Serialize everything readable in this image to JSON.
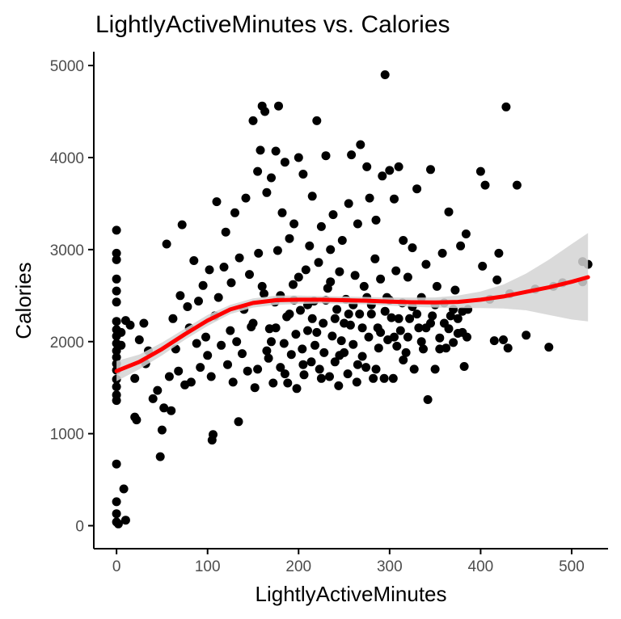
{
  "chart_data": {
    "type": "scatter",
    "title": "LightlyActiveMinutes vs. Calories",
    "xlabel": "LightlyActiveMinutes",
    "ylabel": "Calories",
    "xlim": [
      -25,
      540
    ],
    "ylim": [
      -250,
      5150
    ],
    "x_ticks": [
      0,
      100,
      200,
      300,
      400,
      500
    ],
    "y_ticks": [
      0,
      1000,
      2000,
      3000,
      4000,
      5000
    ],
    "x_tick_labels": [
      "0",
      "100",
      "200",
      "300",
      "400",
      "500"
    ],
    "y_tick_labels": [
      "0",
      "1000",
      "2000",
      "3000",
      "4000",
      "5000"
    ],
    "grid": false,
    "legend": "none",
    "point_color": "#000000",
    "smooth_color": "#ff0000",
    "ribbon_color": "#d3d3d3",
    "smooth_curve": {
      "x": [
        0,
        25,
        50,
        75,
        100,
        125,
        150,
        175,
        200,
        225,
        250,
        275,
        300,
        325,
        350,
        375,
        400,
        425,
        450,
        475,
        500,
        518
      ],
      "y": [
        1680,
        1780,
        1920,
        2080,
        2230,
        2350,
        2420,
        2450,
        2455,
        2455,
        2450,
        2445,
        2435,
        2428,
        2425,
        2432,
        2455,
        2490,
        2540,
        2590,
        2650,
        2700
      ],
      "upper": [
        1790,
        1860,
        1990,
        2140,
        2290,
        2400,
        2470,
        2500,
        2500,
        2495,
        2490,
        2485,
        2480,
        2478,
        2480,
        2500,
        2545,
        2620,
        2740,
        2890,
        3060,
        3180
      ],
      "lower": [
        1570,
        1700,
        1850,
        2020,
        2170,
        2300,
        2370,
        2400,
        2410,
        2415,
        2410,
        2405,
        2390,
        2378,
        2370,
        2364,
        2365,
        2360,
        2340,
        2290,
        2240,
        2220
      ]
    },
    "points": [
      [
        0,
        3210
      ],
      [
        0,
        2960
      ],
      [
        0,
        2890
      ],
      [
        0,
        2680
      ],
      [
        0,
        2550
      ],
      [
        0,
        2430
      ],
      [
        0,
        2220
      ],
      [
        0,
        2130
      ],
      [
        0,
        2060
      ],
      [
        0,
        1980
      ],
      [
        0,
        1900
      ],
      [
        0,
        1830
      ],
      [
        0,
        1760
      ],
      [
        0,
        1690
      ],
      [
        0,
        1590
      ],
      [
        0,
        1510
      ],
      [
        0,
        1420
      ],
      [
        0,
        1360
      ],
      [
        0,
        670
      ],
      [
        0,
        260
      ],
      [
        0,
        130
      ],
      [
        0,
        40
      ],
      [
        2,
        20
      ],
      [
        5,
        1960
      ],
      [
        8,
        400
      ],
      [
        10,
        60
      ],
      [
        5,
        2100
      ],
      [
        10,
        2230
      ],
      [
        15,
        2180
      ],
      [
        20,
        1600
      ],
      [
        20,
        1180
      ],
      [
        22,
        1150
      ],
      [
        25,
        2020
      ],
      [
        30,
        2200
      ],
      [
        32,
        1760
      ],
      [
        35,
        1900
      ],
      [
        40,
        1380
      ],
      [
        45,
        1470
      ],
      [
        48,
        750
      ],
      [
        50,
        1040
      ],
      [
        52,
        1280
      ],
      [
        55,
        3060
      ],
      [
        58,
        1620
      ],
      [
        60,
        1250
      ],
      [
        62,
        2250
      ],
      [
        65,
        1920
      ],
      [
        68,
        1680
      ],
      [
        70,
        2500
      ],
      [
        72,
        3270
      ],
      [
        75,
        1530
      ],
      [
        78,
        2380
      ],
      [
        80,
        2150
      ],
      [
        82,
        1560
      ],
      [
        85,
        2880
      ],
      [
        88,
        1980
      ],
      [
        90,
        2440
      ],
      [
        92,
        1720
      ],
      [
        95,
        2610
      ],
      [
        98,
        2050
      ],
      [
        100,
        1850
      ],
      [
        102,
        2780
      ],
      [
        104,
        1620
      ],
      [
        105,
        930
      ],
      [
        106,
        990
      ],
      [
        108,
        2280
      ],
      [
        110,
        3520
      ],
      [
        112,
        2480
      ],
      [
        115,
        1960
      ],
      [
        118,
        2810
      ],
      [
        120,
        3190
      ],
      [
        122,
        1750
      ],
      [
        125,
        2120
      ],
      [
        126,
        2640
      ],
      [
        128,
        1560
      ],
      [
        130,
        3400
      ],
      [
        132,
        2000
      ],
      [
        134,
        1130
      ],
      [
        135,
        2910
      ],
      [
        138,
        1870
      ],
      [
        140,
        2350
      ],
      [
        142,
        3560
      ],
      [
        144,
        1680
      ],
      [
        146,
        2730
      ],
      [
        148,
        2160
      ],
      [
        150,
        4400
      ],
      [
        152,
        1500
      ],
      [
        155,
        3850
      ],
      [
        156,
        2960
      ],
      [
        158,
        4080
      ],
      [
        160,
        4560
      ],
      [
        162,
        2520
      ],
      [
        163,
        4500
      ],
      [
        165,
        3620
      ],
      [
        167,
        1820
      ],
      [
        168,
        2140
      ],
      [
        170,
        3780
      ],
      [
        172,
        1550
      ],
      [
        174,
        2430
      ],
      [
        175,
        4070
      ],
      [
        177,
        2990
      ],
      [
        178,
        4560
      ],
      [
        180,
        1720
      ],
      [
        182,
        3400
      ],
      [
        184,
        1980
      ],
      [
        185,
        3950
      ],
      [
        187,
        2270
      ],
      [
        188,
        1550
      ],
      [
        190,
        3120
      ],
      [
        192,
        1860
      ],
      [
        194,
        2620
      ],
      [
        195,
        3280
      ],
      [
        197,
        2080
      ],
      [
        198,
        1490
      ],
      [
        200,
        4000
      ],
      [
        202,
        2340
      ],
      [
        204,
        1920
      ],
      [
        205,
        3820
      ],
      [
        206,
        1640
      ],
      [
        208,
        2780
      ],
      [
        210,
        2120
      ],
      [
        212,
        3040
      ],
      [
        214,
        1780
      ],
      [
        215,
        3580
      ],
      [
        217,
        2440
      ],
      [
        218,
        1960
      ],
      [
        220,
        4400
      ],
      [
        222,
        2860
      ],
      [
        223,
        1700
      ],
      [
        225,
        3250
      ],
      [
        227,
        2200
      ],
      [
        228,
        1880
      ],
      [
        230,
        4020
      ],
      [
        232,
        2580
      ],
      [
        234,
        1620
      ],
      [
        235,
        3000
      ],
      [
        237,
        2060
      ],
      [
        238,
        3380
      ],
      [
        240,
        1780
      ],
      [
        242,
        2350
      ],
      [
        244,
        1520
      ],
      [
        245,
        2760
      ],
      [
        247,
        2010
      ],
      [
        248,
        3100
      ],
      [
        250,
        1880
      ],
      [
        252,
        2460
      ],
      [
        254,
        1650
      ],
      [
        255,
        3500
      ],
      [
        257,
        2180
      ],
      [
        258,
        4030
      ],
      [
        260,
        1970
      ],
      [
        262,
        2720
      ],
      [
        264,
        1560
      ],
      [
        265,
        3280
      ],
      [
        267,
        2300
      ],
      [
        268,
        4140
      ],
      [
        270,
        1840
      ],
      [
        272,
        2600
      ],
      [
        274,
        1720
      ],
      [
        275,
        3900
      ],
      [
        277,
        2050
      ],
      [
        278,
        3560
      ],
      [
        280,
        2400
      ],
      [
        282,
        1600
      ],
      [
        284,
        2900
      ],
      [
        285,
        3320
      ],
      [
        287,
        2150
      ],
      [
        288,
        1930
      ],
      [
        290,
        2680
      ],
      [
        292,
        3800
      ],
      [
        294,
        1600
      ],
      [
        295,
        4900
      ],
      [
        297,
        2480
      ],
      [
        298,
        2020
      ],
      [
        300,
        3860
      ],
      [
        302,
        2260
      ],
      [
        304,
        1600
      ],
      [
        305,
        3550
      ],
      [
        307,
        2770
      ],
      [
        308,
        1950
      ],
      [
        310,
        3900
      ],
      [
        312,
        2120
      ],
      [
        314,
        2420
      ],
      [
        315,
        3100
      ],
      [
        318,
        1880
      ],
      [
        320,
        2700
      ],
      [
        322,
        2250
      ],
      [
        325,
        3020
      ],
      [
        327,
        1700
      ],
      [
        330,
        3660
      ],
      [
        332,
        2150
      ],
      [
        335,
        2480
      ],
      [
        337,
        1920
      ],
      [
        340,
        2840
      ],
      [
        342,
        1370
      ],
      [
        345,
        3870
      ],
      [
        347,
        2280
      ],
      [
        350,
        1700
      ],
      [
        352,
        2600
      ],
      [
        355,
        2040
      ],
      [
        358,
        2960
      ],
      [
        360,
        2420
      ],
      [
        362,
        1930
      ],
      [
        365,
        3410
      ],
      [
        367,
        2280
      ],
      [
        370,
        1990
      ],
      [
        372,
        2560
      ],
      [
        375,
        2090
      ],
      [
        378,
        3040
      ],
      [
        380,
        2330
      ],
      [
        382,
        1730
      ],
      [
        384,
        3170
      ],
      [
        386,
        2350
      ],
      [
        400,
        3850
      ],
      [
        402,
        2820
      ],
      [
        405,
        3700
      ],
      [
        410,
        2460
      ],
      [
        415,
        2010
      ],
      [
        418,
        2670
      ],
      [
        420,
        2960
      ],
      [
        425,
        2020
      ],
      [
        428,
        4550
      ],
      [
        430,
        1930
      ],
      [
        432,
        2520
      ],
      [
        440,
        3700
      ],
      [
        450,
        2070
      ],
      [
        460,
        2570
      ],
      [
        475,
        1940
      ],
      [
        480,
        2600
      ],
      [
        490,
        2640
      ],
      [
        512,
        2650
      ],
      [
        512,
        2870
      ],
      [
        518,
        2840
      ],
      [
        150,
        2200
      ],
      [
        160,
        2600
      ],
      [
        170,
        2000
      ],
      [
        180,
        2500
      ],
      [
        190,
        2300
      ],
      [
        200,
        2700
      ],
      [
        210,
        2400
      ],
      [
        220,
        2100
      ],
      [
        230,
        2450
      ],
      [
        240,
        2250
      ],
      [
        250,
        2200
      ],
      [
        260,
        2400
      ],
      [
        270,
        2150
      ],
      [
        280,
        2300
      ],
      [
        290,
        2100
      ],
      [
        300,
        2450
      ],
      [
        310,
        2250
      ],
      [
        320,
        2050
      ],
      [
        330,
        2300
      ],
      [
        340,
        2150
      ],
      [
        350,
        2400
      ],
      [
        360,
        2200
      ],
      [
        370,
        2350
      ],
      [
        380,
        2100
      ],
      [
        155,
        1700
      ],
      [
        165,
        1900
      ],
      [
        175,
        2150
      ],
      [
        185,
        1650
      ],
      [
        195,
        2450
      ],
      [
        205,
        1750
      ],
      [
        215,
        2250
      ],
      [
        225,
        1600
      ],
      [
        235,
        2650
      ],
      [
        245,
        1850
      ],
      [
        255,
        2300
      ],
      [
        265,
        1750
      ],
      [
        275,
        2480
      ],
      [
        285,
        1700
      ],
      [
        295,
        2330
      ],
      [
        305,
        2050
      ],
      [
        315,
        1800
      ],
      [
        325,
        2380
      ],
      [
        335,
        2000
      ],
      [
        345,
        2200
      ],
      [
        355,
        1920
      ],
      [
        365,
        2140
      ],
      [
        375,
        2250
      ],
      [
        385,
        2050
      ]
    ]
  }
}
